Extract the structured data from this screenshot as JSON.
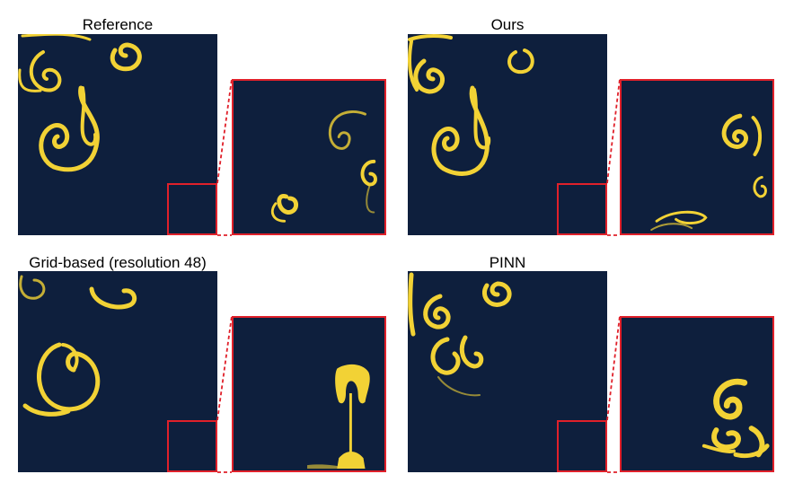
{
  "panels": {
    "reference": {
      "title": "Reference"
    },
    "ours": {
      "title": "Ours"
    },
    "grid": {
      "title": "Grid-based (resolution 48)"
    },
    "pinn": {
      "title": "PINN"
    }
  },
  "colors": {
    "background": "#0e1f3d",
    "dye": "#f2d235",
    "zoom_frame": "#e0202a"
  }
}
